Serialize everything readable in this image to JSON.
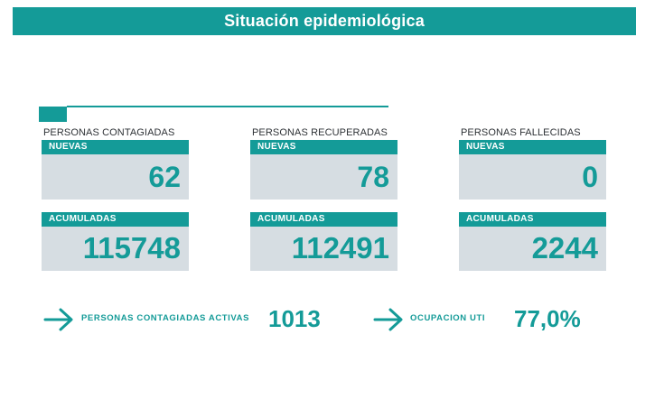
{
  "header": {
    "title": "Situación epidemiológica"
  },
  "groups": [
    {
      "title": "PERSONAS CONTAGIADAS",
      "nuevas_label": "NUEVAS",
      "nuevas_value": "62",
      "acum_label": "ACUMULADAS",
      "acum_value": "115748"
    },
    {
      "title": "PERSONAS RECUPERADAS",
      "nuevas_label": "NUEVAS",
      "nuevas_value": "78",
      "acum_label": "ACUMULADAS",
      "acum_value": "112491"
    },
    {
      "title": "PERSONAS FALLECIDAS",
      "nuevas_label": "NUEVAS",
      "nuevas_value": "0",
      "acum_label": "ACUMULADAS",
      "acum_value": "2244"
    }
  ],
  "summary": [
    {
      "icon": "arrow-right-icon",
      "label": "PERSONAS CONTAGIADAS ACTIVAS",
      "value": "1013"
    },
    {
      "icon": "arrow-right-icon",
      "label": "OCUPACION UTI",
      "value": "77,0%"
    }
  ],
  "colors": {
    "accent": "#149b98",
    "card_bg": "#d6dde2",
    "text_dark": "#2e3236"
  }
}
